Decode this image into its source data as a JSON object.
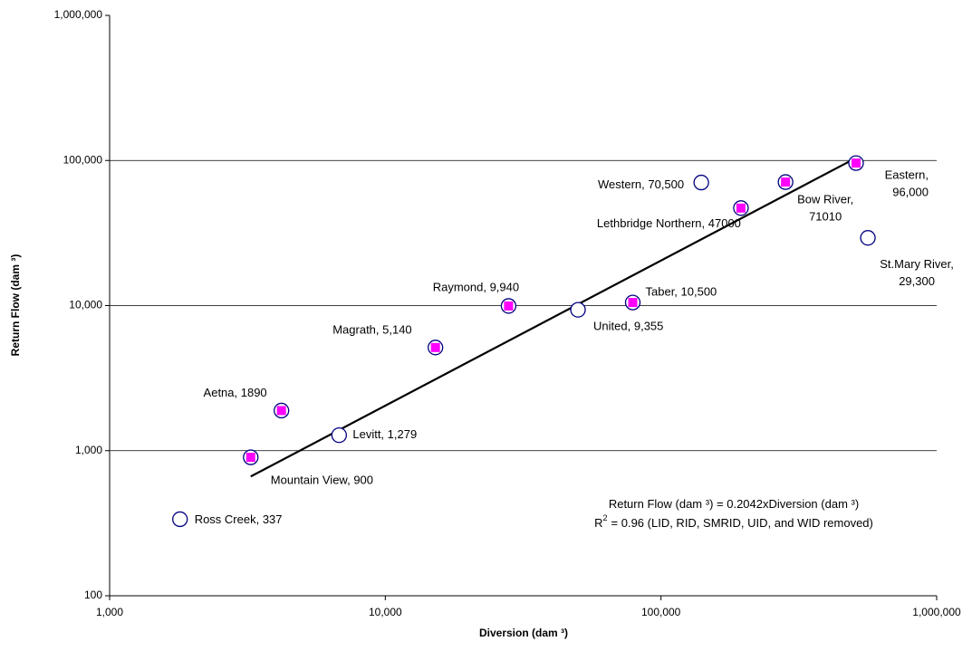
{
  "chart_data": {
    "type": "scatter",
    "x_label": "Diversion (dam ³)",
    "y_label": "Return Flow (dam ³)",
    "log_x": true,
    "log_y": true,
    "grid": true,
    "xlim": [
      1000,
      1000000
    ],
    "ylim": [
      100,
      1000000
    ],
    "xticks": [
      {
        "value": 1000,
        "label": "1,000"
      },
      {
        "value": 10000,
        "label": "10,000"
      },
      {
        "value": 100000,
        "label": "100,000"
      },
      {
        "value": 1000000,
        "label": "1,000,000"
      }
    ],
    "yticks": [
      100,
      {
        "value": 1000,
        "label": "1,000"
      },
      {
        "value": 10000,
        "label": "10,000"
      },
      {
        "value": 100000,
        "label": "100,000"
      },
      {
        "value": 1000000,
        "label": "1,000,000"
      }
    ],
    "series": [
      {
        "color": "#ff00ff",
        "edge_color": "#000080",
        "filled": true,
        "x": [
          3250,
          4200,
          15200,
          28000,
          79000,
          195000,
          283000,
          510000
        ],
        "values": [
          900,
          1890,
          5140,
          9940,
          10500,
          47000,
          71010,
          96000
        ],
        "value_labels": [
          [
            "Mountain View, 900"
          ],
          [
            "Aetna, 1890"
          ],
          [
            "Magrath, 5,140"
          ],
          [
            "Raymond, 9,940"
          ],
          [
            "Taber, 10,500"
          ],
          [
            "Lethbridge Northern, 47000"
          ],
          [
            "Bow River,",
            "71010"
          ],
          [
            "Eastern,",
            "96,000"
          ]
        ]
      },
      {
        "color": "#ffffff",
        "edge_color": "#000080",
        "filled": false,
        "x": [
          1800,
          6800,
          50000,
          140000,
          563000
        ],
        "values": [
          337,
          1279,
          9355,
          70500,
          29300
        ],
        "value_labels": [
          [
            "Ross Creek, 337"
          ],
          [
            "Levitt, 1,279"
          ],
          [
            "United, 9,355"
          ],
          [
            "Western, 70,500"
          ],
          [
            "St.Mary River,",
            "29,300"
          ]
        ]
      }
    ],
    "trendline": {
      "slope": 0.2042,
      "color": "#000000"
    },
    "annotations": [
      [
        "Return Flow (dam ³) = 0.2042xDiversion  (dam ³)"
      ],
      [
        "R",
        "2",
        "= 0.96 (LID, RID, SMRID, UID, and WID removed)"
      ]
    ]
  }
}
